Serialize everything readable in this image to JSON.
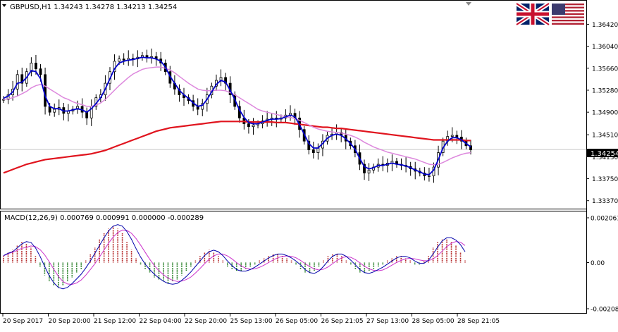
{
  "header": {
    "symbol_line": "GBPUSD,H1  1.34243  1.34278  1.34213  1.34254",
    "macd_line": "MACD(12,26,9) 0.000769 0.000991 0.000000 -0.000289",
    "current_price": "1.34254"
  },
  "colors": {
    "bull_candle": "#000000",
    "bear_candle": "#000000",
    "ma_fast": "#0000cc",
    "ma_mid": "#dd88dd",
    "ma_slow": "#e0141e",
    "macd_pos": "#b22222",
    "macd_neg": "#1f7a1f",
    "macd_signal_1": "#0000aa",
    "macd_signal_2": "#cc33cc",
    "grid": "#c8c8c8",
    "axis": "#000000",
    "background": "#ffffff"
  },
  "icons": [
    "uk-flag-icon",
    "us-flag-icon",
    "dropdown-triangle-icon"
  ],
  "chart_data": [
    {
      "type": "line",
      "panel": "price",
      "y_ticks": [
        "1.36420",
        "1.36040",
        "1.35660",
        "1.35280",
        "1.34900",
        "1.34510",
        "1.34130",
        "1.33750",
        "1.33370"
      ],
      "ylim": [
        1.3333,
        1.3662
      ],
      "x_ticks": [
        "20 Sep 2017",
        "20 Sep 20:00",
        "21 Sep 12:00",
        "22 Sep 04:00",
        "22 Sep 20:00",
        "25 Sep 13:00",
        "26 Sep 05:00",
        "26 Sep 21:05",
        "27 Sep 13:00",
        "28 Sep 05:00",
        "28 Sep 21:05"
      ],
      "series": [
        {
          "key": "close",
          "values": [
            1.3512,
            1.352,
            1.353,
            1.3555,
            1.354,
            1.356,
            1.3575,
            1.3565,
            1.3555,
            1.35,
            1.349,
            1.3495,
            1.3498,
            1.3488,
            1.3492,
            1.3495,
            1.35,
            1.349,
            1.348,
            1.35,
            1.3515,
            1.352,
            1.354,
            1.356,
            1.3578,
            1.3582,
            1.358,
            1.3583,
            1.3582,
            1.3585,
            1.3588,
            1.3584,
            1.3586,
            1.3582,
            1.3575,
            1.356,
            1.354,
            1.353,
            1.352,
            1.3515,
            1.351,
            1.35,
            1.3495,
            1.3505,
            1.352,
            1.3535,
            1.3545,
            1.355,
            1.354,
            1.352,
            1.35,
            1.348,
            1.347,
            1.3465,
            1.3468,
            1.347,
            1.3475,
            1.3478,
            1.348,
            1.3478,
            1.348,
            1.3485,
            1.3488,
            1.348,
            1.346,
            1.344,
            1.3425,
            1.342,
            1.3428,
            1.344,
            1.345,
            1.3452,
            1.3455,
            1.345,
            1.344,
            1.3432,
            1.342,
            1.34,
            1.3385,
            1.339,
            1.3395,
            1.34,
            1.3398,
            1.3402,
            1.3405,
            1.34,
            1.3398,
            1.3396,
            1.3392,
            1.3388,
            1.3385,
            1.338,
            1.338,
            1.3395,
            1.342,
            1.344,
            1.3448,
            1.345,
            1.3447,
            1.344,
            1.3432,
            1.3425
          ]
        },
        {
          "key": "ma_fast",
          "values": [
            1.3514,
            1.3518,
            1.3525,
            1.354,
            1.3542,
            1.355,
            1.3562,
            1.356,
            1.3548,
            1.3518,
            1.35,
            1.3496,
            1.3496,
            1.3492,
            1.3492,
            1.3494,
            1.3496,
            1.3494,
            1.349,
            1.3496,
            1.3505,
            1.3515,
            1.353,
            1.3548,
            1.3565,
            1.3575,
            1.3578,
            1.358,
            1.3581,
            1.3583,
            1.3585,
            1.3584,
            1.3584,
            1.3582,
            1.3578,
            1.3568,
            1.3552,
            1.354,
            1.3528,
            1.352,
            1.3514,
            1.3506,
            1.35,
            1.3502,
            1.3512,
            1.3525,
            1.3538,
            1.3545,
            1.3542,
            1.3528,
            1.3512,
            1.3494,
            1.3481,
            1.3472,
            1.347,
            1.347,
            1.3473,
            1.3476,
            1.3478,
            1.3478,
            1.3479,
            1.3482,
            1.3485,
            1.3482,
            1.3468,
            1.3452,
            1.3436,
            1.3428,
            1.3428,
            1.3436,
            1.3445,
            1.345,
            1.3452,
            1.345,
            1.3444,
            1.3436,
            1.3426,
            1.341,
            1.3396,
            1.3392,
            1.3394,
            1.3398,
            1.3398,
            1.34,
            1.3402,
            1.34,
            1.3399,
            1.3397,
            1.3394,
            1.339,
            1.3387,
            1.3383,
            1.3382,
            1.339,
            1.3408,
            1.3428,
            1.344,
            1.3446,
            1.3446,
            1.3442,
            1.3436,
            1.343
          ]
        },
        {
          "key": "ma_mid",
          "values": [
            1.3512,
            1.3513,
            1.3515,
            1.3518,
            1.3522,
            1.3526,
            1.3532,
            1.3536,
            1.3538,
            1.3535,
            1.353,
            1.3525,
            1.352,
            1.3515,
            1.3512,
            1.3508,
            1.3505,
            1.3503,
            1.35,
            1.35,
            1.3502,
            1.3506,
            1.3512,
            1.352,
            1.3528,
            1.3536,
            1.3543,
            1.355,
            1.3556,
            1.356,
            1.3564,
            1.3566,
            1.3567,
            1.3568,
            1.3568,
            1.3566,
            1.3563,
            1.3558,
            1.3552,
            1.3546,
            1.354,
            1.3535,
            1.353,
            1.3528,
            1.3527,
            1.3527,
            1.3528,
            1.3528,
            1.3527,
            1.3524,
            1.352,
            1.3515,
            1.351,
            1.3505,
            1.35,
            1.3495,
            1.3492,
            1.349,
            1.3488,
            1.3486,
            1.3484,
            1.3482,
            1.3481,
            1.3479,
            1.3476,
            1.3472,
            1.3468,
            1.3464,
            1.3461,
            1.3459,
            1.3457,
            1.3456,
            1.3455,
            1.3454,
            1.3452,
            1.345,
            1.3447,
            1.3443,
            1.3438,
            1.3434,
            1.343,
            1.3427,
            1.3424,
            1.3421,
            1.3419,
            1.3417,
            1.3415,
            1.3413,
            1.3411,
            1.3409,
            1.3406,
            1.3403,
            1.34,
            1.3399,
            1.34,
            1.3403,
            1.3407,
            1.3411,
            1.3414,
            1.3417,
            1.3419,
            1.342
          ]
        },
        {
          "key": "ma_slow",
          "values": [
            1.3385,
            1.3388,
            1.3391,
            1.3394,
            1.3397,
            1.34,
            1.3402,
            1.3404,
            1.3406,
            1.3408,
            1.3409,
            1.341,
            1.3411,
            1.3412,
            1.3413,
            1.3414,
            1.3415,
            1.3416,
            1.3417,
            1.3418,
            1.342,
            1.3422,
            1.3424,
            1.3427,
            1.343,
            1.3433,
            1.3436,
            1.3439,
            1.3442,
            1.3445,
            1.3448,
            1.3451,
            1.3454,
            1.3457,
            1.3459,
            1.3461,
            1.3463,
            1.3464,
            1.3465,
            1.3466,
            1.3467,
            1.3468,
            1.3469,
            1.347,
            1.3471,
            1.3472,
            1.3473,
            1.3474,
            1.3474,
            1.3474,
            1.3474,
            1.3474,
            1.3474,
            1.3473,
            1.3473,
            1.3473,
            1.3473,
            1.3473,
            1.3473,
            1.3472,
            1.3472,
            1.3472,
            1.3471,
            1.347,
            1.3469,
            1.3468,
            1.3467,
            1.3466,
            1.3465,
            1.3464,
            1.3464,
            1.3463,
            1.3462,
            1.3462,
            1.3461,
            1.346,
            1.3459,
            1.3458,
            1.3457,
            1.3456,
            1.3455,
            1.3454,
            1.3453,
            1.3452,
            1.3451,
            1.345,
            1.3449,
            1.3448,
            1.3447,
            1.3446,
            1.3445,
            1.3444,
            1.3443,
            1.3442,
            1.3442,
            1.3442,
            1.3442,
            1.3442,
            1.3442,
            1.3442,
            1.3441,
            1.3441
          ]
        }
      ]
    },
    {
      "type": "bar",
      "panel": "macd",
      "y_ticks": [
        "0.002061",
        "0.00",
        "-0.002087"
      ],
      "ylim": [
        -0.00225,
        0.00225
      ],
      "histogram": [
        0.0003,
        0.0005,
        0.0006,
        0.0008,
        0.001,
        0.0009,
        0.0007,
        0.0003,
        -0.0002,
        -0.0006,
        -0.0009,
        -0.0011,
        -0.0012,
        -0.0011,
        -0.0009,
        -0.0007,
        -0.0005,
        -0.0003,
        0.0001,
        0.0004,
        0.0007,
        0.0011,
        0.0014,
        0.0016,
        0.0017,
        0.0016,
        0.0014,
        0.001,
        0.0006,
        0.0002,
        -0.0001,
        -0.0003,
        -0.0005,
        -0.0007,
        -0.0008,
        -0.0009,
        -0.001,
        -0.0009,
        -0.0008,
        -0.0006,
        -0.0004,
        -0.0002,
        0.0001,
        0.0003,
        0.0005,
        0.0006,
        0.0005,
        0.0003,
        0.0001,
        -0.0002,
        -0.0003,
        -0.0004,
        -0.0004,
        -0.0003,
        -0.0002,
        -0.0001,
        0.0001,
        0.0002,
        0.0003,
        0.0004,
        0.0004,
        0.0003,
        0.0002,
        0.0001,
        -0.0001,
        -0.0003,
        -0.0005,
        -0.0005,
        -0.0004,
        -0.0002,
        0.0001,
        0.0003,
        0.0004,
        0.0004,
        0.0003,
        0.0001,
        -0.0001,
        -0.0003,
        -0.0005,
        -0.0005,
        -0.0004,
        -0.0003,
        -0.0002,
        -0.0001,
        0.0001,
        0.0002,
        0.0003,
        0.0003,
        0.0002,
        0.0001,
        -0.0001,
        -0.0001,
        0.0001,
        0.0003,
        0.0007,
        0.001,
        0.0011,
        0.0011,
        0.001,
        0.0008,
        0.0005,
        0.0001
      ]
    }
  ]
}
